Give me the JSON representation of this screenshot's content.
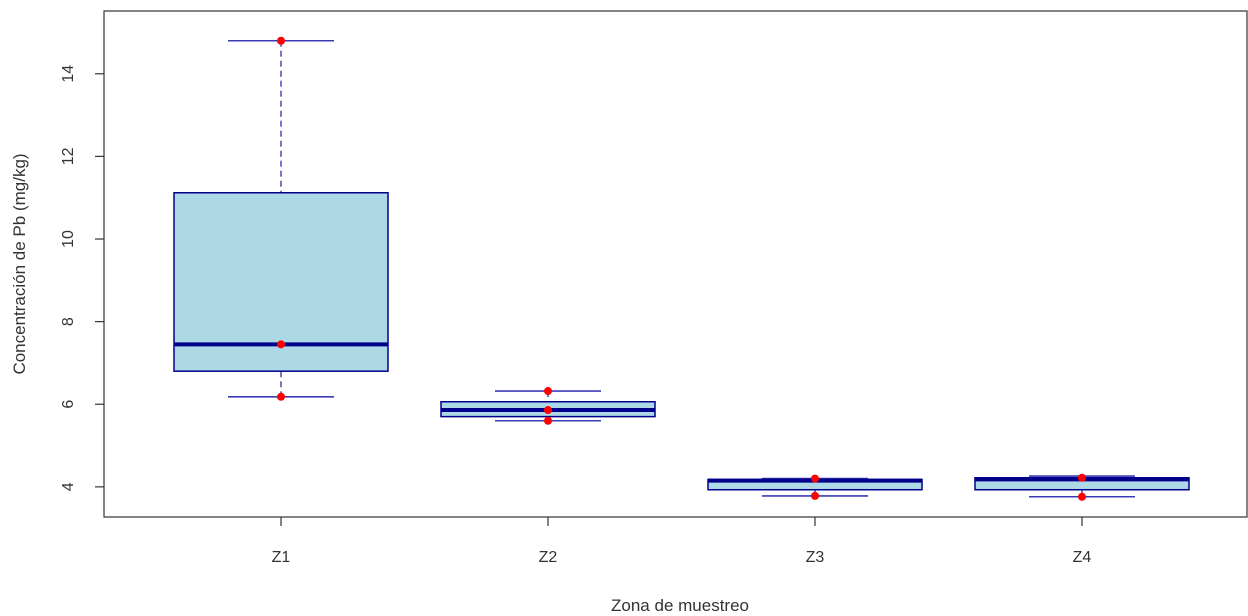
{
  "chart_data": {
    "type": "boxplot",
    "xlabel": "Zona de muestreo",
    "ylabel": "Concentración de Pb (mg/kg)",
    "categories": [
      "Z1",
      "Z2",
      "Z3",
      "Z4"
    ],
    "ylim": [
      3.27,
      15.52
    ],
    "yticks": [
      4,
      6,
      8,
      10,
      12,
      14
    ],
    "grid": false,
    "boxes": [
      {
        "category": "Z1",
        "min": 6.18,
        "q1": 6.8,
        "median": 7.45,
        "q3": 11.12,
        "max": 14.8,
        "points": [
          6.18,
          7.45,
          14.8
        ]
      },
      {
        "category": "Z2",
        "min": 5.6,
        "q1": 5.7,
        "median": 5.86,
        "q3": 6.06,
        "max": 6.32,
        "points": [
          5.6,
          5.86,
          6.32
        ]
      },
      {
        "category": "Z3",
        "min": 3.78,
        "q1": 3.93,
        "median": 4.15,
        "q3": 4.18,
        "max": 4.2,
        "points": [
          3.78,
          4.2
        ]
      },
      {
        "category": "Z4",
        "min": 3.76,
        "q1": 3.93,
        "median": 4.18,
        "q3": 4.22,
        "max": 4.26,
        "points": [
          3.76,
          4.22
        ]
      }
    ],
    "colors": {
      "box_fill": "#add8e6",
      "box_border": "#00008b",
      "whisker": "#3b3bb5",
      "point": "#ff0000",
      "axis": "#333333"
    }
  }
}
